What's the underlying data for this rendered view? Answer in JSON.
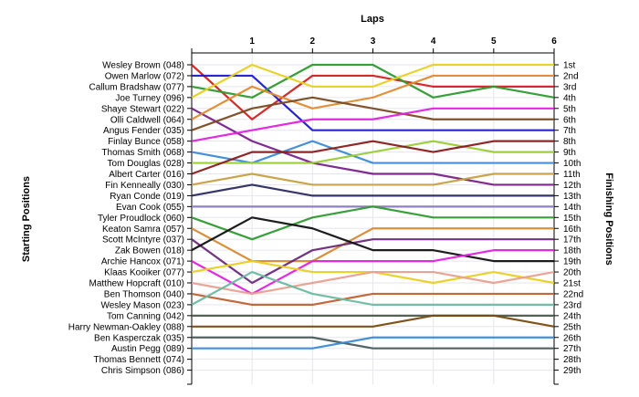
{
  "chart_data": {
    "type": "line",
    "title": "Laps",
    "ylabel_left": "Starting Positions",
    "ylabel_right": "Finishing Positions",
    "x": [
      0,
      1,
      2,
      3,
      4,
      5,
      6
    ],
    "x_tick_labels": [
      "1",
      "2",
      "3",
      "4",
      "5",
      "6"
    ],
    "y_range": [
      1,
      29
    ],
    "y_reversed": true,
    "grid": true,
    "finish_labels": [
      "1st",
      "2nd",
      "3rd",
      "4th",
      "5th",
      "6th",
      "7th",
      "8th",
      "9th",
      "10th",
      "11th",
      "12th",
      "13th",
      "14th",
      "15th",
      "16th",
      "17th",
      "18th",
      "19th",
      "20th",
      "21st",
      "22nd",
      "23rd",
      "24th",
      "25th",
      "26th",
      "27th",
      "28th",
      "29th"
    ],
    "series": [
      {
        "name": "Wesley Brown (048)",
        "color": "#d22020",
        "positions": [
          1,
          6,
          2,
          2,
          3,
          3,
          3
        ]
      },
      {
        "name": "Owen Marlow (072)",
        "color": "#1a1ad0",
        "positions": [
          2,
          2,
          7,
          7,
          7,
          7,
          7
        ]
      },
      {
        "name": "Callum Bradshaw (077)",
        "color": "#2e9a2e",
        "positions": [
          3,
          4,
          1,
          1,
          4,
          3,
          4
        ]
      },
      {
        "name": "Joe Turney (096)",
        "color": "#e8d020",
        "positions": [
          4,
          1,
          3,
          3,
          1,
          1,
          1
        ]
      },
      {
        "name": "Shaye Stewart (022)",
        "color": "#7a1f8a",
        "positions": [
          5,
          8,
          10,
          11,
          11,
          12,
          12
        ]
      },
      {
        "name": "Olli Caldwell (064)",
        "color": "#e08a30",
        "positions": [
          6,
          3,
          5,
          4,
          2,
          2,
          2
        ]
      },
      {
        "name": "Angus Fender (035)",
        "color": "#7a4a20",
        "positions": [
          7,
          5,
          4,
          5,
          6,
          6,
          6
        ]
      },
      {
        "name": "Finlay Bunce (058)",
        "color": "#e020e0",
        "positions": [
          8,
          7,
          6,
          6,
          5,
          5,
          5
        ]
      },
      {
        "name": "Thomas Smith (068)",
        "color": "#3a8ad8",
        "positions": [
          9,
          10,
          8,
          10,
          10,
          10,
          10
        ]
      },
      {
        "name": "Tom Douglas (028)",
        "color": "#99cc33",
        "positions": [
          10,
          10,
          10,
          9,
          8,
          9,
          9
        ]
      },
      {
        "name": "Albert Carter (016)",
        "color": "#8b1a1a",
        "positions": [
          11,
          9,
          9,
          8,
          9,
          8,
          8
        ]
      },
      {
        "name": "Fin Kenneally (030)",
        "color": "#c8a040",
        "positions": [
          12,
          11,
          12,
          12,
          12,
          11,
          11
        ]
      },
      {
        "name": "Ryan Conde (019)",
        "color": "#2a2a60",
        "positions": [
          13,
          12,
          13,
          13,
          13,
          13,
          13
        ]
      },
      {
        "name": "Evan Cook (055)",
        "color": "#8a7ac0",
        "positions": [
          14,
          14,
          14,
          14,
          14,
          14,
          14
        ]
      },
      {
        "name": "Tyler Proudlock (060)",
        "color": "#2e9a2e",
        "positions": [
          15,
          17,
          15,
          14,
          15,
          15,
          15
        ]
      },
      {
        "name": "Keaton Samra (057)",
        "color": "#d88a30",
        "positions": [
          16,
          19,
          19,
          16,
          16,
          16,
          16
        ]
      },
      {
        "name": "Scott McIntyre (037)",
        "color": "#6a2a7a",
        "positions": [
          17,
          21,
          18,
          17,
          17,
          17,
          17
        ]
      },
      {
        "name": "Zak Bowen (018)",
        "color": "#111111",
        "positions": [
          18,
          15,
          16,
          18,
          18,
          19,
          19
        ]
      },
      {
        "name": "Archie Hancox (071)",
        "color": "#e020e0",
        "positions": [
          19,
          22,
          19,
          19,
          19,
          18,
          18
        ]
      },
      {
        "name": "Klaas Kooiker (077)",
        "color": "#e8d020",
        "positions": [
          20,
          19,
          20,
          20,
          21,
          20,
          21
        ]
      },
      {
        "name": "Matthew Hopcraft (010)",
        "color": "#e8a090",
        "positions": [
          21,
          22,
          21,
          20,
          20,
          21,
          20
        ]
      },
      {
        "name": "Ben Thomson (040)",
        "color": "#c06030",
        "positions": [
          22,
          23,
          23,
          22,
          22,
          22,
          22
        ]
      },
      {
        "name": "Wesley Mason (023)",
        "color": "#6abaa0",
        "positions": [
          23,
          20,
          22,
          23,
          23,
          23,
          23
        ]
      },
      {
        "name": "Tom Canning (042)",
        "color": "#4a5a4a",
        "positions": [
          24,
          24,
          24,
          24,
          24,
          24,
          24
        ]
      },
      {
        "name": "Harry Newman-Oakley (088)",
        "color": "#7a4a10",
        "positions": [
          25,
          25,
          25,
          25,
          24,
          24,
          25
        ]
      },
      {
        "name": "Ben Kasperczak (035)",
        "color": "#4a5a5a",
        "positions": [
          26,
          26,
          26,
          27,
          27,
          27,
          27
        ]
      },
      {
        "name": "Austin Pegg (089)",
        "color": "#3a8ad8",
        "positions": [
          27,
          27,
          27,
          26,
          26,
          26,
          26
        ]
      },
      {
        "name": "Thomas Bennett (074)",
        "color": "#888888",
        "positions": [
          28
        ]
      },
      {
        "name": "Chris Simpson (086)",
        "color": "#888888",
        "positions": [
          29
        ]
      }
    ]
  }
}
